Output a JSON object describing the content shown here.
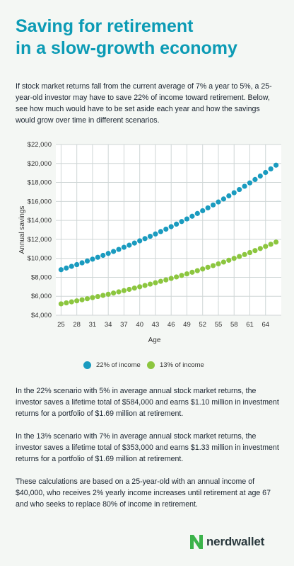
{
  "header": {
    "title_line1": "Saving for retirement",
    "title_line2": "in a slow-growth economy"
  },
  "intro": "If stock market returns fall from the current average of 7% a year to 5%, a 25-year-old investor may have to save 22% of income toward retirement. Below, see how much would have to be set aside each year and how the savings would grow over time in different scenarios.",
  "chart_data": {
    "type": "scatter",
    "xlabel": "Age",
    "ylabel": "Annual savings",
    "x_ticks": [
      25,
      28,
      31,
      34,
      37,
      40,
      43,
      46,
      49,
      52,
      55,
      58,
      61,
      64
    ],
    "y_ticks": [
      "$4,000",
      "$6,000",
      "$8,000",
      "$10,000",
      "$12,000",
      "$14,000",
      "$16,000",
      "$18,000",
      "$20,000",
      "$22,000"
    ],
    "xlim": [
      24,
      67
    ],
    "ylim": [
      4000,
      22000
    ],
    "grid": true,
    "legend_position": "bottom",
    "x": [
      25,
      26,
      27,
      28,
      29,
      30,
      31,
      32,
      33,
      34,
      35,
      36,
      37,
      38,
      39,
      40,
      41,
      42,
      43,
      44,
      45,
      46,
      47,
      48,
      49,
      50,
      51,
      52,
      53,
      54,
      55,
      56,
      57,
      58,
      59,
      60,
      61,
      62,
      63,
      64,
      65,
      66
    ],
    "series": [
      {
        "name": "22% of income",
        "color": "#1a9bbf",
        "start": 8800,
        "growth": 0.02
      },
      {
        "name": "13% of income",
        "color": "#8cc63f",
        "start": 5200,
        "growth": 0.02
      }
    ]
  },
  "paragraphs": {
    "p1": "In the 22% scenario with 5% in average annual stock market returns, the investor saves a lifetime total of $584,000 and earns $1.10 million in investment returns for a portfolio of $1.69 million at retirement.",
    "p2": "In the 13% scenario with 7% in average annual stock market returns, the investor saves a lifetime total of $353,000 and earns $1.33 million in investment returns for a portfolio of $1.69 million at retirement.",
    "p3": "These calculations are based on a 25-year-old with an annual income of $40,000, who receives 2% yearly income increases until retirement at age 67 and who seeks to replace 80% of income in retirement."
  },
  "footer": {
    "logo_text": "nerdwallet",
    "logo_color": "#3bb34a"
  }
}
